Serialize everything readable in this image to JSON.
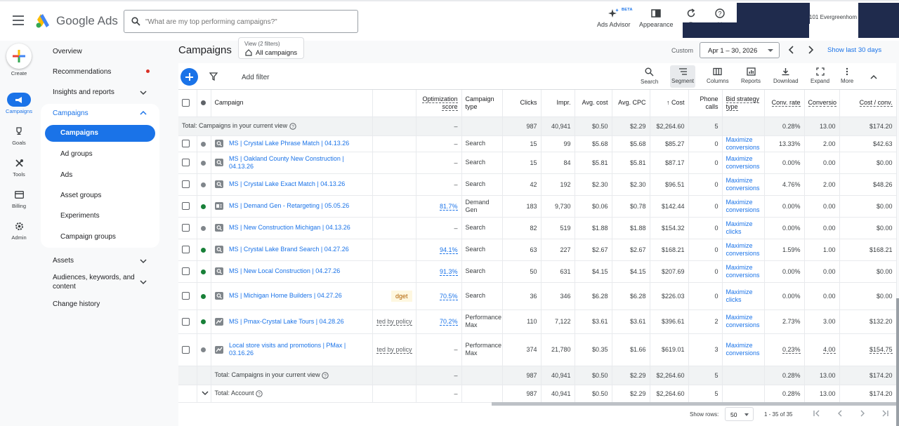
{
  "header": {
    "brand": "Google Ads",
    "search_placeholder": "\"What are my top performing campaigns?\"",
    "ads_advisor": "Ads Advisor",
    "beta": "BETA",
    "appearance": "Appearance",
    "refresh": "R",
    "help": "H",
    "account_text": "101 Evergreenhom"
  },
  "rail": {
    "create": "Create",
    "campaigns": "Campaigns",
    "goals": "Goals",
    "tools": "Tools",
    "billing": "Billing",
    "admin": "Admin"
  },
  "nav": {
    "overview": "Overview",
    "recommendations": "Recommendations",
    "insights": "Insights and reports",
    "campaigns_group": "Campaigns",
    "campaigns": "Campaigns",
    "ad_groups": "Ad groups",
    "ads": "Ads",
    "asset_groups": "Asset groups",
    "experiments": "Experiments",
    "campaign_groups": "Campaign groups",
    "assets": "Assets",
    "audiences_1": "Audiences, keywords, and",
    "audiences_2": "content",
    "change_history": "Change history"
  },
  "page": {
    "title": "Campaigns",
    "view_line1": "View (2 filters)",
    "view_line2": "All campaigns",
    "custom": "Custom",
    "date_range": "Apr 1 – 30, 2026",
    "show_last": "Show last 30 days"
  },
  "toolbar": {
    "add_filter": "Add filter",
    "search": "Search",
    "segment": "Segment",
    "columns": "Columns",
    "reports": "Reports",
    "download": "Download",
    "expand": "Expand",
    "more": "More"
  },
  "columns": {
    "campaign": "Campaign",
    "opt_score": "Optimization score",
    "camp_type": "Campaign type",
    "clicks": "Clicks",
    "impr": "Impr.",
    "avg_cost": "Avg. cost",
    "avg_cpc": "Avg. CPC",
    "cost": "↑ Cost",
    "phone": "Phone calls",
    "bid": "Bid strategy type",
    "conv_rate": "Conv. rate",
    "conversions": "Conversio",
    "cost_conv": "Cost / conv."
  },
  "top_total": {
    "label": "Total: Campaigns in your current view",
    "opt": "–",
    "clicks": "987",
    "impr": "40,941",
    "avg_cost": "$0.50",
    "avg_cpc": "$2.29",
    "cost": "$2,264.60",
    "phone": "5",
    "conv_rate": "0.28%",
    "conversions": "13.00",
    "cost_conv": "$174.20"
  },
  "rows": [
    {
      "name": "MS | Crystal Lake Phrase Match | 04.13.26",
      "dot": "#80868b",
      "status": "",
      "opt": "–",
      "type": "Search",
      "clicks": "15",
      "impr": "99",
      "avg_cost": "$5.68",
      "avg_cpc": "$5.68",
      "cost": "$85.27",
      "phone": "0",
      "bid": "Maximize conversions",
      "conv_rate": "13.33%",
      "conversions": "2.00",
      "cost_conv": "$42.63"
    },
    {
      "name": "MS | Oakland County New Construction | 04.13.26",
      "dot": "#80868b",
      "status": "",
      "opt": "–",
      "type": "Search",
      "clicks": "15",
      "impr": "84",
      "avg_cost": "$5.81",
      "avg_cpc": "$5.81",
      "cost": "$87.17",
      "phone": "0",
      "bid": "Maximize conversions",
      "conv_rate": "0.00%",
      "conversions": "0.00",
      "cost_conv": "$0.00"
    },
    {
      "name": "MS | Crystal Lake Exact Match | 04.13.26",
      "dot": "#80868b",
      "status": "",
      "opt": "–",
      "type": "Search",
      "clicks": "42",
      "impr": "192",
      "avg_cost": "$2.30",
      "avg_cpc": "$2.30",
      "cost": "$96.51",
      "phone": "0",
      "bid": "Maximize conversions",
      "conv_rate": "4.76%",
      "conversions": "2.00",
      "cost_conv": "$48.26"
    },
    {
      "name": "MS | Demand Gen - Retargeting | 05.05.26",
      "dot": "#188038",
      "status": "",
      "opt": "81.7%",
      "type": "Demand Gen",
      "clicks": "183",
      "impr": "9,730",
      "avg_cost": "$0.06",
      "avg_cpc": "$0.78",
      "cost": "$142.44",
      "phone": "0",
      "bid": "Maximize conversions",
      "conv_rate": "0.00%",
      "conversions": "0.00",
      "cost_conv": "$0.00"
    },
    {
      "name": "MS | New Construction Michigan | 04.13.26",
      "dot": "#80868b",
      "status": "",
      "opt": "–",
      "type": "Search",
      "clicks": "82",
      "impr": "519",
      "avg_cost": "$1.88",
      "avg_cpc": "$1.88",
      "cost": "$154.32",
      "phone": "0",
      "bid": "Maximize clicks",
      "conv_rate": "0.00%",
      "conversions": "0.00",
      "cost_conv": "$0.00"
    },
    {
      "name": "MS | Crystal Lake Brand Search | 04.27.26",
      "dot": "#188038",
      "status": "",
      "opt": "94.1%",
      "type": "Search",
      "clicks": "63",
      "impr": "227",
      "avg_cost": "$2.67",
      "avg_cpc": "$2.67",
      "cost": "$168.21",
      "phone": "0",
      "bid": "Maximize conversions",
      "conv_rate": "1.59%",
      "conversions": "1.00",
      "cost_conv": "$168.21"
    },
    {
      "name": "MS | New Local Construction | 04.27.26",
      "dot": "#188038",
      "status": "",
      "opt": "91.3%",
      "type": "Search",
      "clicks": "50",
      "impr": "631",
      "avg_cost": "$4.15",
      "avg_cpc": "$4.15",
      "cost": "$207.69",
      "phone": "0",
      "bid": "Maximize conversions",
      "conv_rate": "0.00%",
      "conversions": "0.00",
      "cost_conv": "$0.00"
    },
    {
      "name": "MS | Michigan Home Builders | 04.27.26",
      "dot": "#188038",
      "status": "dget",
      "opt": "70.5%",
      "type": "Search",
      "clicks": "36",
      "impr": "346",
      "avg_cost": "$6.28",
      "avg_cpc": "$6.28",
      "cost": "$226.03",
      "phone": "0",
      "bid": "Maximize clicks",
      "conv_rate": "0.00%",
      "conversions": "0.00",
      "cost_conv": "$0.00"
    },
    {
      "name": "MS | Pmax-Crystal Lake Tours | 04.28.26",
      "dot": "#188038",
      "status": "ted by policy",
      "opt": "70.2%",
      "type": "Performance Max",
      "clicks": "110",
      "impr": "7,122",
      "avg_cost": "$3.61",
      "avg_cpc": "$3.61",
      "cost": "$396.61",
      "phone": "2",
      "bid": "Maximize conversions",
      "conv_rate": "2.73%",
      "conversions": "3.00",
      "cost_conv": "$132.20"
    },
    {
      "name": "Local store visits and promotions | PMax | 03.16.26",
      "dot": "#80868b",
      "status": "ted by policy",
      "opt": "–",
      "type": "Performance Max",
      "clicks": "374",
      "impr": "21,780",
      "avg_cost": "$0.35",
      "avg_cpc": "$1.66",
      "cost": "$619.01",
      "phone": "3",
      "bid": "Maximize conversions",
      "conv_rate": "0.23%",
      "conversions": "4.00",
      "cost_conv": "$154.75"
    }
  ],
  "bottom_total": {
    "label": "Total: Campaigns in your current view",
    "opt": "–",
    "clicks": "987",
    "impr": "40,941",
    "avg_cost": "$0.50",
    "avg_cpc": "$2.29",
    "cost": "$2,264.60",
    "phone": "5",
    "conv_rate": "0.28%",
    "conversions": "13.00",
    "cost_conv": "$174.20"
  },
  "account_total": {
    "label": "Total: Account",
    "opt": "–",
    "clicks": "987",
    "impr": "40,941",
    "avg_cost": "$0.50",
    "avg_cpc": "$2.29",
    "cost": "$2,264.60",
    "phone": "5",
    "conv_rate": "0.28%",
    "conversions": "13.00",
    "cost_conv": "$174.20"
  },
  "footer": {
    "show_rows": "Show rows:",
    "rows_value": "50",
    "range": "1 - 35 of 35"
  },
  "colors": {
    "accent": "#1a73e8",
    "enabled": "#188038",
    "paused": "#80868b",
    "redaction": "#1f2b4d"
  }
}
